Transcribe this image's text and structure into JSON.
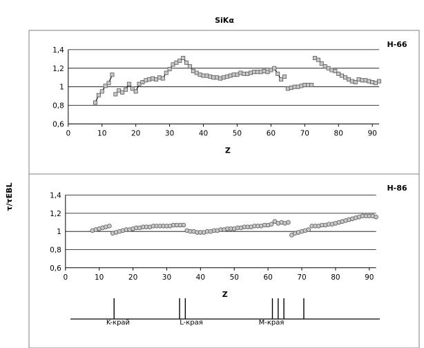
{
  "title": "SiKα",
  "ylabel": "τ/τEBL",
  "edges_label": {
    "k": "K-край",
    "l": "L-края",
    "m": "M-края"
  },
  "edge_positions_z": [
    14.4,
    33.8,
    35.5,
    61.3,
    63.0,
    64.7,
    70.6
  ],
  "chart_data": [
    {
      "type": "line",
      "title": "",
      "panel_label": "H-66",
      "xlabel": "Z",
      "xlim": [
        0,
        92
      ],
      "xticks": [
        0,
        10,
        20,
        30,
        40,
        50,
        60,
        70,
        80,
        90
      ],
      "ylim": [
        0.6,
        1.4
      ],
      "yticks": [
        0.6,
        0.8,
        1.0,
        1.2,
        1.4
      ],
      "ytick_labels": [
        "0,6",
        "0,8",
        "1",
        "1,2",
        "1,4"
      ],
      "grid_y": true,
      "marker": "square",
      "series": [
        {
          "segments": [
            {
              "x": [
                8,
                9,
                10,
                11,
                12,
                13
              ],
              "y": [
                0.83,
                0.91,
                0.95,
                1.01,
                1.04,
                1.13
              ]
            },
            {
              "x": [
                14,
                15,
                16,
                17,
                18,
                19,
                20,
                21,
                22,
                23,
                24,
                25,
                26,
                27,
                28,
                29,
                30,
                31,
                32,
                33,
                34,
                35,
                36,
                37,
                38,
                39,
                40,
                41,
                42,
                43,
                44,
                45,
                46,
                47,
                48,
                49,
                50,
                51,
                52,
                53,
                54,
                55,
                56,
                57,
                58,
                59,
                60,
                61,
                62,
                63,
                64
              ],
              "y": [
                0.92,
                0.96,
                0.94,
                0.97,
                1.03,
                0.98,
                0.95,
                1.03,
                1.05,
                1.07,
                1.08,
                1.09,
                1.08,
                1.1,
                1.09,
                1.15,
                1.19,
                1.24,
                1.26,
                1.28,
                1.31,
                1.26,
                1.22,
                1.17,
                1.15,
                1.13,
                1.12,
                1.12,
                1.11,
                1.1,
                1.1,
                1.09,
                1.1,
                1.11,
                1.12,
                1.13,
                1.13,
                1.15,
                1.14,
                1.14,
                1.15,
                1.16,
                1.16,
                1.16,
                1.17,
                1.16,
                1.18,
                1.2,
                1.14,
                1.08,
                1.11
              ]
            },
            {
              "x": [
                65,
                66,
                67,
                68,
                69,
                70,
                71,
                72
              ],
              "y": [
                0.98,
                0.99,
                1.0,
                1.0,
                1.01,
                1.02,
                1.02,
                1.02
              ]
            },
            {
              "x": [
                73,
                74,
                75,
                76,
                77,
                78,
                79,
                80,
                81,
                82,
                83,
                84,
                85,
                86,
                87,
                88,
                89,
                90,
                91,
                92
              ],
              "y": [
                1.31,
                1.29,
                1.25,
                1.22,
                1.2,
                1.18,
                1.17,
                1.14,
                1.12,
                1.1,
                1.08,
                1.06,
                1.05,
                1.08,
                1.07,
                1.07,
                1.06,
                1.05,
                1.04,
                1.06
              ]
            }
          ]
        }
      ]
    },
    {
      "type": "line",
      "title": "",
      "panel_label": "H-86",
      "xlabel": "Z",
      "xlim": [
        0,
        92
      ],
      "xticks": [
        0,
        10,
        20,
        30,
        40,
        50,
        60,
        70,
        80,
        90
      ],
      "ylim": [
        0.6,
        1.4
      ],
      "yticks": [
        0.6,
        0.8,
        1.0,
        1.2,
        1.4
      ],
      "ytick_labels": [
        "0,6",
        "0,8",
        "1",
        "1,2",
        "1,4"
      ],
      "grid_y": true,
      "marker": "circle",
      "series": [
        {
          "segments": [
            {
              "x": [
                8,
                9,
                10,
                11,
                12,
                13
              ],
              "y": [
                1.01,
                1.02,
                1.03,
                1.04,
                1.05,
                1.06
              ]
            },
            {
              "x": [
                14,
                15,
                16,
                17,
                18,
                19,
                20,
                21,
                22,
                23,
                24,
                25,
                26,
                27,
                28,
                29,
                30,
                31,
                32,
                33,
                34,
                35
              ],
              "y": [
                0.98,
                0.99,
                1.0,
                1.01,
                1.02,
                1.02,
                1.03,
                1.04,
                1.04,
                1.05,
                1.05,
                1.05,
                1.06,
                1.06,
                1.06,
                1.06,
                1.06,
                1.06,
                1.07,
                1.07,
                1.07,
                1.07
              ]
            },
            {
              "x": [
                36,
                37,
                38,
                39,
                40,
                41,
                42,
                43,
                44,
                45,
                46,
                47,
                48,
                49,
                50,
                51,
                52,
                53,
                54,
                55,
                56,
                57,
                58,
                59,
                60,
                61,
                62,
                63,
                64,
                65,
                66
              ],
              "y": [
                1.01,
                1.0,
                1.0,
                0.99,
                0.99,
                0.99,
                1.0,
                1.0,
                1.01,
                1.01,
                1.02,
                1.02,
                1.03,
                1.03,
                1.03,
                1.04,
                1.04,
                1.05,
                1.05,
                1.05,
                1.06,
                1.06,
                1.06,
                1.07,
                1.07,
                1.08,
                1.11,
                1.09,
                1.1,
                1.09,
                1.1
              ]
            },
            {
              "x": [
                67,
                68,
                69,
                70,
                71,
                72
              ],
              "y": [
                0.96,
                0.98,
                0.99,
                1.0,
                1.01,
                1.02
              ]
            },
            {
              "x": [
                73,
                74,
                75,
                76,
                77,
                78,
                79,
                80,
                81,
                82,
                83,
                84,
                85,
                86,
                87,
                88,
                89,
                90,
                91,
                92
              ],
              "y": [
                1.06,
                1.06,
                1.06,
                1.07,
                1.07,
                1.08,
                1.08,
                1.09,
                1.1,
                1.11,
                1.12,
                1.13,
                1.14,
                1.15,
                1.16,
                1.17,
                1.17,
                1.17,
                1.17,
                1.16
              ]
            }
          ]
        }
      ]
    }
  ]
}
